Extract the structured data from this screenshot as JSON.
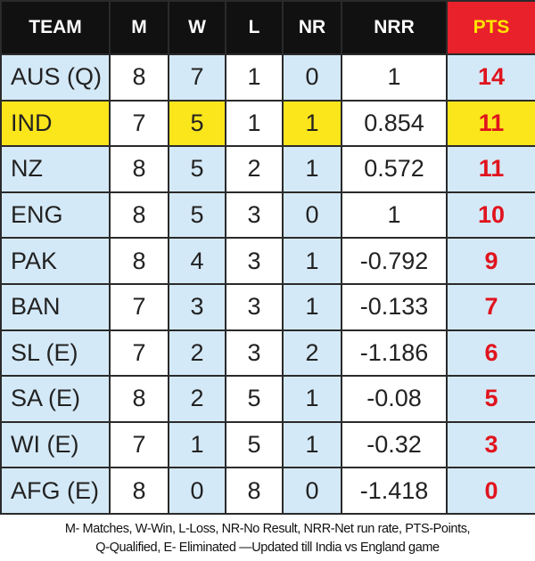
{
  "table": {
    "header": [
      "TEAM",
      "M",
      "W",
      "L",
      "NR",
      "NRR",
      "PTS"
    ],
    "rows": [
      [
        "AUS (Q)",
        8,
        7,
        1,
        0,
        1,
        14
      ],
      [
        "IND",
        7,
        5,
        1,
        1,
        0.854,
        11
      ],
      [
        "NZ",
        8,
        5,
        2,
        1,
        0.572,
        11
      ],
      [
        "ENG",
        8,
        5,
        3,
        0,
        1,
        10
      ],
      [
        "PAK",
        8,
        4,
        3,
        1,
        -0.792,
        9
      ],
      [
        "BAN",
        7,
        3,
        3,
        1,
        -0.133,
        7
      ],
      [
        "SL (E)",
        7,
        2,
        3,
        2,
        -1.186,
        6
      ],
      [
        "SA (E)",
        8,
        2,
        5,
        1,
        -0.08,
        5
      ],
      [
        "WI (E)",
        7,
        1,
        5,
        1,
        -0.32,
        3
      ],
      [
        "AFG (E)",
        8,
        0,
        8,
        0,
        -1.418,
        0
      ]
    ]
  },
  "footer": {
    "lines": [
      "M- Matches, W-Win, L-Loss, NR-No Result, NRR-Net run rate, PTS-Points,",
      "Q-Qualified, E- Eliminated —Updated till India vs England game"
    ]
  }
}
